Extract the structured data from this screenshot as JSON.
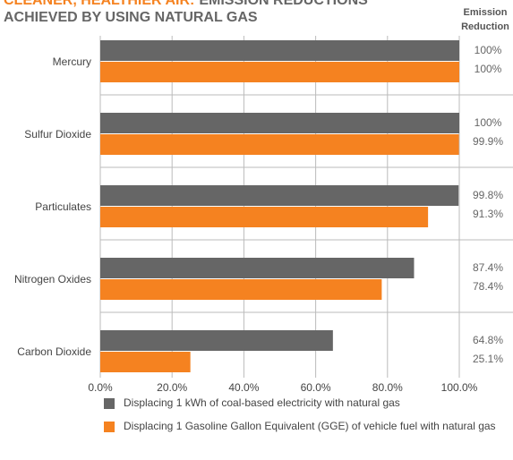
{
  "chart_data": {
    "type": "bar",
    "orientation": "horizontal",
    "title": [
      "CLEANER, HEALTHIER AIR:",
      "EMISSION REDUCTIONS",
      "ACHIEVED BY USING NATURAL GAS"
    ],
    "title_colors": [
      "#f58220",
      "#666666",
      "#666666"
    ],
    "value_label_header": [
      "Emission",
      "Reduction"
    ],
    "categories": [
      "Mercury",
      "Sulfur Dioxide",
      "Particulates",
      "Nitrogen Oxides",
      "Carbon Dioxide"
    ],
    "series": [
      {
        "name": "Displacing 1 kWh of coal-based electricity with natural gas",
        "color": "#666666",
        "values": [
          100,
          100,
          99.8,
          87.4,
          64.8
        ],
        "value_labels": [
          "100%",
          "100%",
          "99.8%",
          "87.4%",
          "64.8%"
        ]
      },
      {
        "name": "Displacing 1 Gasoline Gallon Equivalent (GGE) of vehicle fuel with natural gas",
        "color": "#f58220",
        "values": [
          100,
          99.9,
          91.3,
          78.4,
          25.1
        ],
        "value_labels": [
          "100%",
          "99.9%",
          "91.3%",
          "78.4%",
          "25.1%"
        ]
      }
    ],
    "xlim": [
      0,
      100
    ],
    "xticks": [
      {
        "value": 0,
        "label": "0.0%"
      },
      {
        "value": 20,
        "label": "20.0%"
      },
      {
        "value": 40,
        "label": "40.0%"
      },
      {
        "value": 60,
        "label": "60.0%"
      },
      {
        "value": 80,
        "label": "80.0%"
      },
      {
        "value": 100,
        "label": "100.0%"
      }
    ],
    "grid": true
  }
}
